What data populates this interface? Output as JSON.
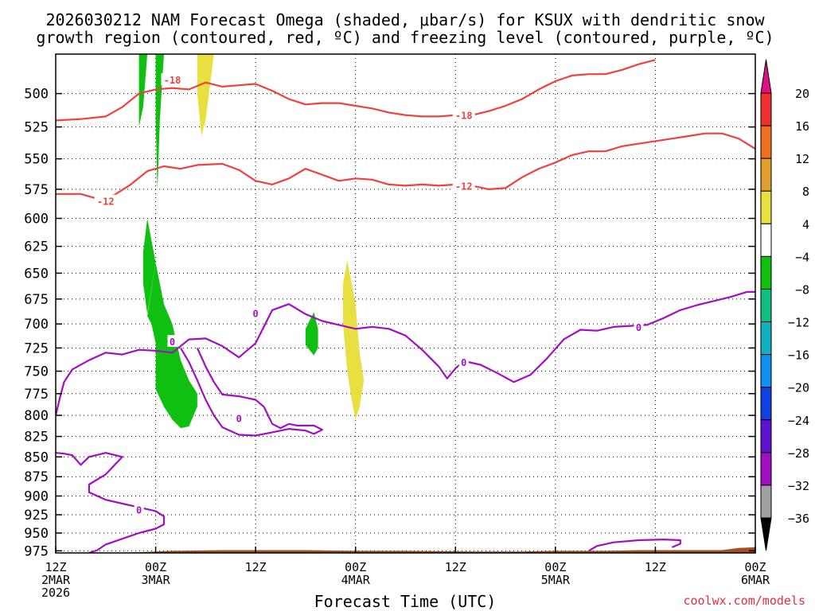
{
  "title_line1": "2026030212 NAM Forecast Omega (shaded, μbar/s) for KSUX with dendritic snow",
  "title_line2": "growth region (contoured, red, ºC) and freezing level (contoured, purple, ºC)",
  "xlabel": "Forecast Time (UTC)",
  "credit": "coolwx.com/models",
  "chart_data": {
    "type": "contour-cross-section",
    "title": "2026030212 NAM Forecast Omega (shaded, μbar/s) for KSUX with dendritic snow growth region (contoured, red, ºC) and freezing level (contoured, purple, ºC)",
    "xlabel": "Forecast Time (UTC)",
    "ylabel": "",
    "y_scale": "pressure (inverted, log-like)",
    "ylim": [
      978,
      472
    ],
    "xlim_hours": [
      0,
      84
    ],
    "yticks": [
      500,
      525,
      550,
      575,
      600,
      625,
      650,
      675,
      700,
      725,
      750,
      775,
      800,
      825,
      850,
      875,
      900,
      925,
      950,
      975
    ],
    "xticks": [
      {
        "hour": 0,
        "line1": "12Z",
        "line2": "2MAR",
        "line3": "2026"
      },
      {
        "hour": 12,
        "line1": "00Z",
        "line2": "3MAR",
        "line3": ""
      },
      {
        "hour": 24,
        "line1": "12Z",
        "line2": "",
        "line3": ""
      },
      {
        "hour": 36,
        "line1": "00Z",
        "line2": "4MAR",
        "line3": ""
      },
      {
        "hour": 48,
        "line1": "12Z",
        "line2": "",
        "line3": ""
      },
      {
        "hour": 60,
        "line1": "00Z",
        "line2": "5MAR",
        "line3": ""
      },
      {
        "hour": 72,
        "line1": "12Z",
        "line2": "",
        "line3": ""
      },
      {
        "hour": 84,
        "line1": "00Z",
        "line2": "6MAR",
        "line3": ""
      }
    ],
    "grid": true,
    "colorbar": {
      "labels": [
        "20",
        "16",
        "12",
        "8",
        "4",
        "−4",
        "−8",
        "−12",
        "−16",
        "−20",
        "−24",
        "−28",
        "−32",
        "−36"
      ],
      "colors": [
        "#e01080",
        "#f03030",
        "#f07020",
        "#e0a030",
        "#e8e040",
        "#ffffff",
        "#10c010",
        "#10c080",
        "#10b0c0",
        "#1090f0",
        "#1040e0",
        "#6010d0",
        "#a010c0",
        "#a0a0a0",
        "#000000"
      ]
    },
    "contours": [
      {
        "name": "-18",
        "color": "#f04040",
        "points": [
          [
            0,
            520
          ],
          [
            3,
            519
          ],
          [
            6,
            517
          ],
          [
            8,
            510
          ],
          [
            10,
            500
          ],
          [
            12,
            497
          ],
          [
            14,
            496
          ],
          [
            16,
            497
          ],
          [
            18,
            492
          ],
          [
            20,
            495
          ],
          [
            22,
            494
          ],
          [
            24,
            493
          ],
          [
            26,
            498
          ],
          [
            28,
            504
          ],
          [
            30,
            508
          ],
          [
            32,
            507
          ],
          [
            34,
            507
          ],
          [
            36,
            509
          ],
          [
            38,
            511
          ],
          [
            40,
            514
          ],
          [
            42,
            516
          ],
          [
            44,
            517
          ],
          [
            46,
            517
          ],
          [
            48,
            516
          ],
          [
            50,
            516
          ],
          [
            52,
            513
          ],
          [
            54,
            509
          ],
          [
            56,
            504
          ],
          [
            58,
            497
          ],
          [
            60,
            491
          ],
          [
            62,
            487
          ],
          [
            64,
            486
          ],
          [
            66,
            486
          ],
          [
            68,
            483
          ],
          [
            70,
            479
          ],
          [
            72,
            476
          ]
        ],
        "labels": [
          [
            14,
            490,
            "-18"
          ],
          [
            49,
            516,
            "-18"
          ]
        ]
      },
      {
        "name": "-12",
        "color": "#f04040",
        "points": [
          [
            0,
            579
          ],
          [
            3,
            579
          ],
          [
            5,
            583
          ],
          [
            7,
            580
          ],
          [
            9,
            571
          ],
          [
            11,
            560
          ],
          [
            13,
            556
          ],
          [
            15,
            558
          ],
          [
            17,
            555
          ],
          [
            20,
            554
          ],
          [
            22,
            559
          ],
          [
            24,
            568
          ],
          [
            26,
            571
          ],
          [
            28,
            566
          ],
          [
            30,
            558
          ],
          [
            32,
            563
          ],
          [
            34,
            568
          ],
          [
            36,
            566
          ],
          [
            38,
            567
          ],
          [
            40,
            571
          ],
          [
            42,
            572
          ],
          [
            44,
            571
          ],
          [
            46,
            572
          ],
          [
            48,
            571
          ],
          [
            50,
            572
          ],
          [
            52,
            575
          ],
          [
            54,
            574
          ],
          [
            56,
            565
          ],
          [
            58,
            558
          ],
          [
            60,
            553
          ],
          [
            62,
            547
          ],
          [
            64,
            544
          ],
          [
            66,
            544
          ],
          [
            68,
            540
          ],
          [
            70,
            538
          ],
          [
            72,
            536
          ],
          [
            74,
            534
          ],
          [
            76,
            532
          ],
          [
            78,
            530
          ],
          [
            80,
            530
          ],
          [
            82,
            534
          ],
          [
            84,
            542
          ]
        ],
        "labels": [
          [
            6,
            585,
            "-12"
          ],
          [
            49,
            572,
            "-12"
          ]
        ]
      },
      {
        "name": "0",
        "color": "#a010c0",
        "points": [
          [
            0,
            800
          ],
          [
            0.5,
            780
          ],
          [
            1,
            762
          ],
          [
            2,
            748
          ],
          [
            4,
            738
          ],
          [
            6,
            730
          ],
          [
            8,
            732
          ],
          [
            10,
            727
          ],
          [
            12,
            728
          ],
          [
            14,
            730
          ],
          [
            16,
            716
          ],
          [
            18,
            715
          ],
          [
            20,
            723
          ],
          [
            22,
            735
          ],
          [
            24,
            720
          ],
          [
            26,
            686
          ],
          [
            28,
            680
          ],
          [
            30,
            690
          ],
          [
            32,
            697
          ],
          [
            34,
            701
          ],
          [
            36,
            705
          ],
          [
            38,
            703
          ],
          [
            40,
            705
          ],
          [
            42,
            712
          ],
          [
            44,
            727
          ],
          [
            46,
            745
          ],
          [
            47,
            758
          ],
          [
            48,
            747
          ],
          [
            49,
            739
          ],
          [
            51,
            743
          ],
          [
            53,
            752
          ],
          [
            55,
            762
          ],
          [
            57,
            754
          ],
          [
            59,
            736
          ],
          [
            61,
            716
          ],
          [
            63,
            706
          ],
          [
            65,
            707
          ],
          [
            67,
            703
          ],
          [
            69,
            702
          ],
          [
            71,
            701
          ],
          [
            73,
            694
          ],
          [
            75,
            686
          ],
          [
            77,
            681
          ],
          [
            79,
            677
          ],
          [
            81,
            673
          ],
          [
            83,
            668
          ],
          [
            84,
            668
          ]
        ],
        "labels": [
          [
            14,
            718,
            "0"
          ],
          [
            24,
            689,
            "0"
          ],
          [
            49,
            740,
            "0"
          ],
          [
            70,
            703,
            "0"
          ]
        ]
      },
      {
        "name": "0",
        "color": "#a010c0",
        "points": [
          [
            0,
            845
          ],
          [
            1,
            846
          ],
          [
            2,
            848
          ],
          [
            3,
            860
          ],
          [
            4,
            850
          ],
          [
            6,
            845
          ],
          [
            8,
            850
          ],
          [
            6,
            872
          ],
          [
            4,
            885
          ],
          [
            4,
            895
          ],
          [
            6,
            905
          ],
          [
            8,
            910
          ],
          [
            10,
            915
          ],
          [
            12,
            920
          ],
          [
            13,
            927
          ],
          [
            13,
            938
          ],
          [
            12,
            944
          ],
          [
            10,
            950
          ],
          [
            8,
            958
          ],
          [
            6,
            966
          ],
          [
            5,
            974
          ],
          [
            4,
            978
          ]
        ],
        "labels": [
          [
            10,
            918,
            "0"
          ]
        ]
      },
      {
        "name": "0",
        "color": "#a010c0",
        "points": [
          [
            15,
            725
          ],
          [
            16,
            740
          ],
          [
            17,
            760
          ],
          [
            18,
            782
          ],
          [
            19,
            800
          ],
          [
            20,
            814
          ],
          [
            22,
            823
          ],
          [
            24,
            824
          ],
          [
            26,
            820
          ],
          [
            28,
            816
          ],
          [
            30,
            818
          ],
          [
            31,
            822
          ],
          [
            32,
            817
          ],
          [
            31,
            812
          ],
          [
            29,
            812
          ],
          [
            28,
            810
          ],
          [
            27,
            815
          ],
          [
            26,
            810
          ],
          [
            25,
            790
          ],
          [
            24,
            782
          ],
          [
            22,
            778
          ],
          [
            20,
            776
          ],
          [
            19,
            762
          ],
          [
            18,
            745
          ],
          [
            17,
            725
          ]
        ],
        "labels": [
          [
            22,
            803,
            "0"
          ]
        ]
      },
      {
        "name": "0",
        "color": "#a010c0",
        "points": [
          [
            64,
            975
          ],
          [
            65,
            968
          ],
          [
            67,
            963
          ],
          [
            70,
            960
          ],
          [
            73,
            959
          ],
          [
            75,
            960
          ],
          [
            75,
            965
          ],
          [
            74,
            970
          ]
        ],
        "labels": []
      }
    ],
    "omega_regions": [
      {
        "value": "-4 to -8",
        "color": "#10c010",
        "points": [
          [
            11,
            692
          ],
          [
            12,
            640
          ],
          [
            13,
            680
          ],
          [
            14,
            700
          ],
          [
            15,
            738
          ],
          [
            16,
            760
          ],
          [
            17,
            775
          ],
          [
            17,
            790
          ],
          [
            16,
            813
          ],
          [
            15,
            815
          ],
          [
            14,
            805
          ],
          [
            13,
            790
          ],
          [
            12,
            770
          ],
          [
            12,
            740
          ],
          [
            12,
            720
          ],
          [
            11.5,
            700
          ]
        ]
      },
      {
        "value": "-4 to -8",
        "color": "#10c010",
        "points": [
          [
            11,
            600
          ],
          [
            12,
            640
          ],
          [
            11,
            690
          ],
          [
            10.5,
            660
          ],
          [
            10.5,
            630
          ]
        ]
      },
      {
        "value": "-4 to -8",
        "color": "#10c010",
        "points": [
          [
            10,
            472
          ],
          [
            11,
            472
          ],
          [
            10.5,
            510
          ],
          [
            10,
            525
          ]
        ]
      },
      {
        "value": "-4 to -8",
        "color": "#10c010",
        "points": [
          [
            12,
            472
          ],
          [
            13,
            472
          ],
          [
            12.5,
            520
          ],
          [
            12.3,
            560
          ],
          [
            12.2,
            575
          ],
          [
            12,
            520
          ]
        ]
      },
      {
        "value": "-4 to -8",
        "color": "#10c010",
        "points": [
          [
            31,
            688
          ],
          [
            31.5,
            705
          ],
          [
            31.5,
            725
          ],
          [
            31,
            733
          ],
          [
            30,
            722
          ],
          [
            30,
            705
          ]
        ]
      },
      {
        "value": "4 to 8",
        "color": "#e8e040",
        "points": [
          [
            17,
            472
          ],
          [
            19,
            472
          ],
          [
            18.5,
            495
          ],
          [
            18,
            520
          ],
          [
            17.5,
            532
          ],
          [
            17,
            500
          ]
        ]
      },
      {
        "value": "4 to 8",
        "color": "#e8e040",
        "points": [
          [
            35,
            638
          ],
          [
            36,
            680
          ],
          [
            36.5,
            730
          ],
          [
            37,
            760
          ],
          [
            36.5,
            790
          ],
          [
            36,
            805
          ],
          [
            35.5,
            780
          ],
          [
            35,
            750
          ],
          [
            34.5,
            700
          ],
          [
            34.5,
            660
          ]
        ]
      }
    ],
    "terrain": {
      "color": "#a05020",
      "points": [
        [
          0,
          978
        ],
        [
          6,
          978
        ],
        [
          10,
          977
        ],
        [
          14,
          975
        ],
        [
          20,
          974
        ],
        [
          30,
          974
        ],
        [
          36,
          975
        ],
        [
          42,
          975
        ],
        [
          50,
          976
        ],
        [
          56,
          976
        ],
        [
          60,
          975
        ],
        [
          66,
          975
        ],
        [
          70,
          974
        ],
        [
          74,
          974
        ],
        [
          80,
          974
        ],
        [
          82,
          971
        ],
        [
          84,
          970
        ]
      ]
    }
  }
}
